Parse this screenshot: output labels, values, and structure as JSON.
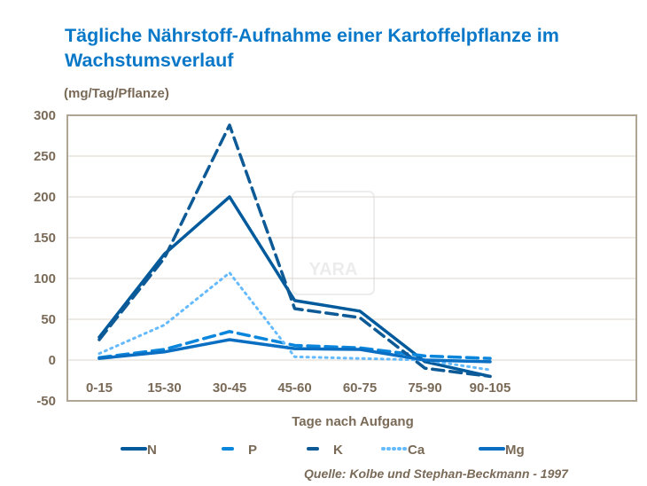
{
  "chart_data": {
    "type": "line",
    "title": "Tägliche Nährstoff-Aufnahme einer Kartoffelpflanze im Wachstumsverlauf",
    "ylabel": "(mg/Tag/Pflanze)",
    "xlabel": "Tage nach Aufgang",
    "categories": [
      "0-15",
      "15-30",
      "30-45",
      "45-60",
      "60-75",
      "75-90",
      "90-105"
    ],
    "ylim": [
      -50,
      300
    ],
    "yticks": [
      300,
      250,
      200,
      150,
      100,
      50,
      0,
      -50
    ],
    "grid": true,
    "legend": "bottom",
    "source": "Quelle: Kolbe und Stephan-Beckmann  - 1997",
    "watermark": "YARA",
    "series": [
      {
        "name": "N",
        "values": [
          28,
          130,
          200,
          73,
          60,
          -2,
          -20
        ],
        "color": "#005a9c",
        "dash": "solid"
      },
      {
        "name": "P",
        "values": [
          3,
          13,
          35,
          18,
          15,
          5,
          2
        ],
        "color": "#0a86dc",
        "dash": "dash"
      },
      {
        "name": "K",
        "values": [
          25,
          125,
          288,
          63,
          52,
          -10,
          -20
        ],
        "color": "#0d5a96",
        "dash": "dash"
      },
      {
        "name": "Ca",
        "values": [
          8,
          43,
          107,
          4,
          2,
          0,
          -12
        ],
        "color": "#66bbff",
        "dash": "dot"
      },
      {
        "name": "Mg",
        "values": [
          2,
          10,
          25,
          14,
          13,
          0,
          -2
        ],
        "color": "#0a6ec2",
        "dash": "solid"
      }
    ]
  }
}
